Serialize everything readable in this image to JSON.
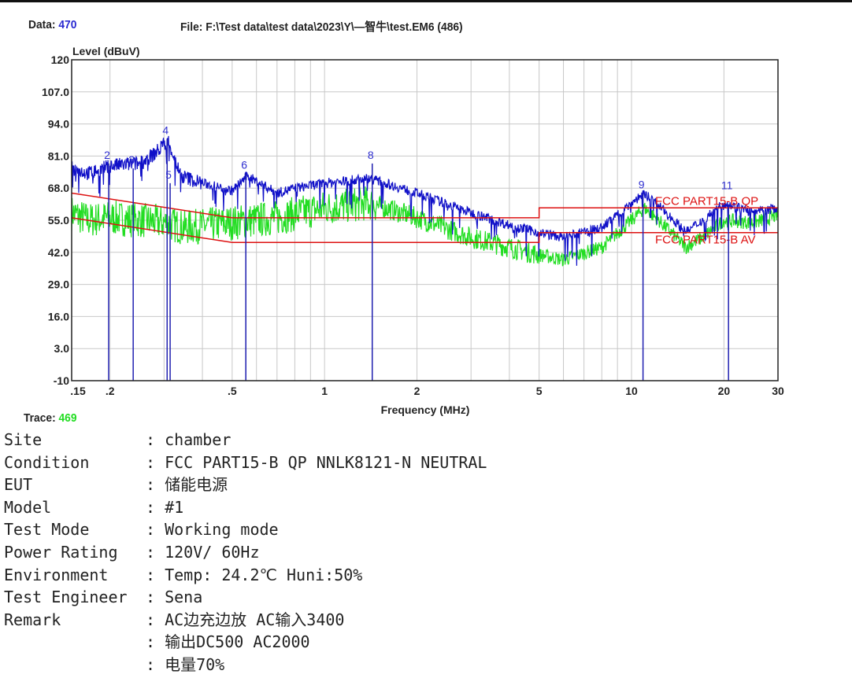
{
  "header": {
    "data_label": "Data:",
    "data_value": "470",
    "file_label": "File: F:\\Test data\\test data\\2023\\Y\\—智牛\\test.EM6  (486)"
  },
  "trace": {
    "label": "Trace:",
    "value": "469"
  },
  "chart_data": {
    "type": "line",
    "ylabel": "Level (dBuV)",
    "xlabel": "Frequency (MHz)",
    "xscale": "log",
    "xlim": [
      0.15,
      30
    ],
    "ylim": [
      -10,
      120
    ],
    "yticks": [
      -10,
      3.0,
      16.0,
      29.0,
      42.0,
      55.0,
      68.0,
      81.0,
      94.0,
      107.0,
      120
    ],
    "ytick_labels": [
      "-10",
      "3.0",
      "16.0",
      "29.0",
      "42.0",
      "55.0",
      "68.0",
      "81.0",
      "94.0",
      "107.0",
      "120"
    ],
    "xticks": [
      0.15,
      0.2,
      0.5,
      1,
      2,
      5,
      10,
      20,
      30
    ],
    "xtick_labels": [
      ".15",
      ".2",
      ".5",
      "1",
      "2",
      "5",
      "10",
      "20",
      "30"
    ],
    "grid": true,
    "colors": {
      "qp_trace": "#1010c8",
      "av_trace": "#22dd22",
      "limit": "#dd1111",
      "marker": "#2020b0"
    },
    "limits": [
      {
        "name": "FCC PART15-B QP",
        "x": [
          0.15,
          0.5,
          5,
          5,
          30
        ],
        "y": [
          66,
          56,
          56,
          60,
          60
        ]
      },
      {
        "name": "FCC PART15-B AV",
        "x": [
          0.15,
          0.5,
          5,
          5,
          30
        ],
        "y": [
          56,
          46,
          46,
          50,
          50
        ]
      }
    ],
    "series": [
      {
        "x": [
          0.15,
          0.17,
          0.2,
          0.25,
          0.28,
          0.3,
          0.31,
          0.34,
          0.4,
          0.5,
          0.56,
          0.7,
          0.8,
          1,
          1.4,
          2,
          3,
          4,
          5,
          6,
          8,
          10,
          11,
          12,
          14,
          15,
          17,
          20,
          25,
          30
        ],
        "y": [
          76,
          74,
          77,
          78,
          82,
          86,
          87,
          73,
          70,
          67,
          73,
          66,
          68,
          70,
          72,
          66,
          58,
          53,
          50,
          48,
          52,
          62,
          66,
          62,
          54,
          50,
          55,
          62,
          58,
          60
        ]
      },
      {
        "x": [
          0.15,
          0.17,
          0.2,
          0.25,
          0.3,
          0.35,
          0.5,
          0.7,
          1,
          1.4,
          2,
          3,
          4,
          5,
          6,
          8,
          10,
          11,
          12,
          14,
          15,
          17,
          20,
          25,
          30
        ],
        "y": [
          58,
          55,
          56,
          55,
          54,
          52,
          54,
          56,
          60,
          62,
          56,
          48,
          44,
          41,
          39,
          44,
          55,
          60,
          56,
          48,
          44,
          48,
          55,
          54,
          57
        ]
      }
    ],
    "markers": [
      {
        "label": "2",
        "freq": 0.198,
        "level": 78
      },
      {
        "label": "3",
        "freq": 0.238,
        "level": 76
      },
      {
        "label": "4",
        "freq": 0.307,
        "level": 88
      },
      {
        "label": "5",
        "freq": 0.314,
        "level": 70
      },
      {
        "label": "6",
        "freq": 0.554,
        "level": 74
      },
      {
        "label": "8",
        "freq": 1.43,
        "level": 78
      },
      {
        "label": "9",
        "freq": 10.9,
        "level": 66
      },
      {
        "label": "11",
        "freq": 20.7,
        "level": 61
      }
    ]
  },
  "info": [
    {
      "label": "Site",
      "value": ": chamber"
    },
    {
      "label": "Condition",
      "value": ": FCC PART15-B QP NNLK8121-N NEUTRAL"
    },
    {
      "label": "EUT",
      "value": ": 储能电源"
    },
    {
      "label": "Model",
      "value": ": #1"
    },
    {
      "label": "Test Mode",
      "value": ": Working mode"
    },
    {
      "label": "Power Rating",
      "value": ": 120V/ 60Hz"
    },
    {
      "label": "Environment",
      "value": ": Temp: 24.2℃ Huni:50%"
    },
    {
      "label": "Test Engineer",
      "value": ": Sena"
    },
    {
      "label": "Remark",
      "value": ": AC边充边放 AC输入3400"
    },
    {
      "label": "",
      "value": ": 输出DC500 AC2000"
    },
    {
      "label": "",
      "value": ": 电量70%"
    }
  ]
}
